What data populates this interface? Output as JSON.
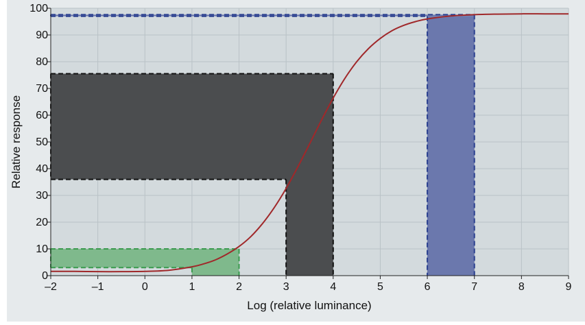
{
  "chart_data": {
    "type": "line",
    "title": "",
    "xlabel": "Log (relative luminance)",
    "ylabel": "Relative response",
    "xlim": [
      -2,
      9
    ],
    "ylim": [
      0,
      100
    ],
    "x_ticks": [
      -2,
      -1,
      0,
      1,
      2,
      3,
      4,
      5,
      6,
      7,
      8,
      9
    ],
    "x_tick_labels": [
      "–2",
      "–1",
      "0",
      "1",
      "2",
      "3",
      "4",
      "5",
      "6",
      "7",
      "8",
      "9"
    ],
    "y_ticks": [
      0,
      10,
      20,
      30,
      40,
      50,
      60,
      70,
      80,
      90,
      100
    ],
    "y_tick_labels": [
      "0",
      "10",
      "20",
      "30",
      "40",
      "50",
      "60",
      "70",
      "80",
      "90",
      "100"
    ],
    "grid": true,
    "series": [
      {
        "color": "#a0282a",
        "x": [
          -2,
          -1.5,
          -1,
          -0.5,
          0,
          0.5,
          1,
          1.25,
          1.5,
          1.75,
          2,
          2.25,
          2.5,
          2.75,
          3,
          3.25,
          3.5,
          3.75,
          4,
          4.25,
          4.5,
          4.75,
          5,
          5.25,
          5.5,
          5.75,
          6,
          6.5,
          7,
          7.5,
          8,
          8.5,
          9
        ],
        "y": [
          1.6,
          1.6,
          1.5,
          1.5,
          1.6,
          2.0,
          3.3,
          4.4,
          5.9,
          8.1,
          10.9,
          14.6,
          19.5,
          25.5,
          32.6,
          40.7,
          49.3,
          58.1,
          66.4,
          73.8,
          80.0,
          84.9,
          88.7,
          91.6,
          93.6,
          95.0,
          96.0,
          97.1,
          97.6,
          97.8,
          97.9,
          97.9,
          97.9
        ]
      }
    ],
    "regions": [
      {
        "name": "green",
        "x": [
          1,
          2
        ],
        "y": [
          3,
          10
        ],
        "fill": "#7fb98c",
        "border": "#3a9a4e"
      },
      {
        "name": "dark",
        "x": [
          3,
          4
        ],
        "y": [
          36,
          75.5
        ],
        "fill": "#4b4d4f",
        "border": "#111111"
      },
      {
        "name": "blue",
        "x": [
          6,
          7
        ],
        "y": [
          97,
          97.6
        ],
        "fill": "#6b78ad",
        "border": "#2a3f8f"
      }
    ],
    "plot_background": "#d3dadd",
    "grid_color": "#b9c2c6"
  }
}
